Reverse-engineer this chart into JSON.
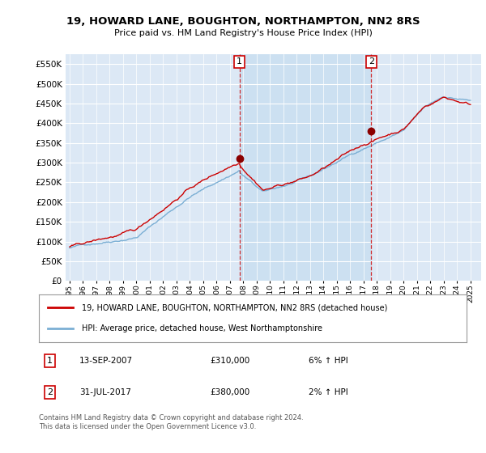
{
  "title": "19, HOWARD LANE, BOUGHTON, NORTHAMPTON, NN2 8RS",
  "subtitle": "Price paid vs. HM Land Registry's House Price Index (HPI)",
  "hpi_color": "#7bafd4",
  "price_color": "#cc0000",
  "shade_color": "#c8dff0",
  "background_plot": "#dce8f5",
  "grid_color": "#ffffff",
  "ylim": [
    0,
    575000
  ],
  "yticks": [
    0,
    50000,
    100000,
    150000,
    200000,
    250000,
    300000,
    350000,
    400000,
    450000,
    500000,
    550000
  ],
  "legend_label_price": "19, HOWARD LANE, BOUGHTON, NORTHAMPTON, NN2 8RS (detached house)",
  "legend_label_hpi": "HPI: Average price, detached house, West Northamptonshire",
  "annotation1_date": "13-SEP-2007",
  "annotation1_price": "£310,000",
  "annotation1_hpi": "6% ↑ HPI",
  "annotation2_date": "31-JUL-2017",
  "annotation2_price": "£380,000",
  "annotation2_hpi": "2% ↑ HPI",
  "footer": "Contains HM Land Registry data © Crown copyright and database right 2024.\nThis data is licensed under the Open Government Licence v3.0.",
  "sale1_x": 2007.71,
  "sale1_y": 310000,
  "sale2_x": 2017.58,
  "sale2_y": 380000,
  "vline1_x": 2007.71,
  "vline2_x": 2017.58,
  "xlim_left": 1994.7,
  "xlim_right": 2025.8
}
